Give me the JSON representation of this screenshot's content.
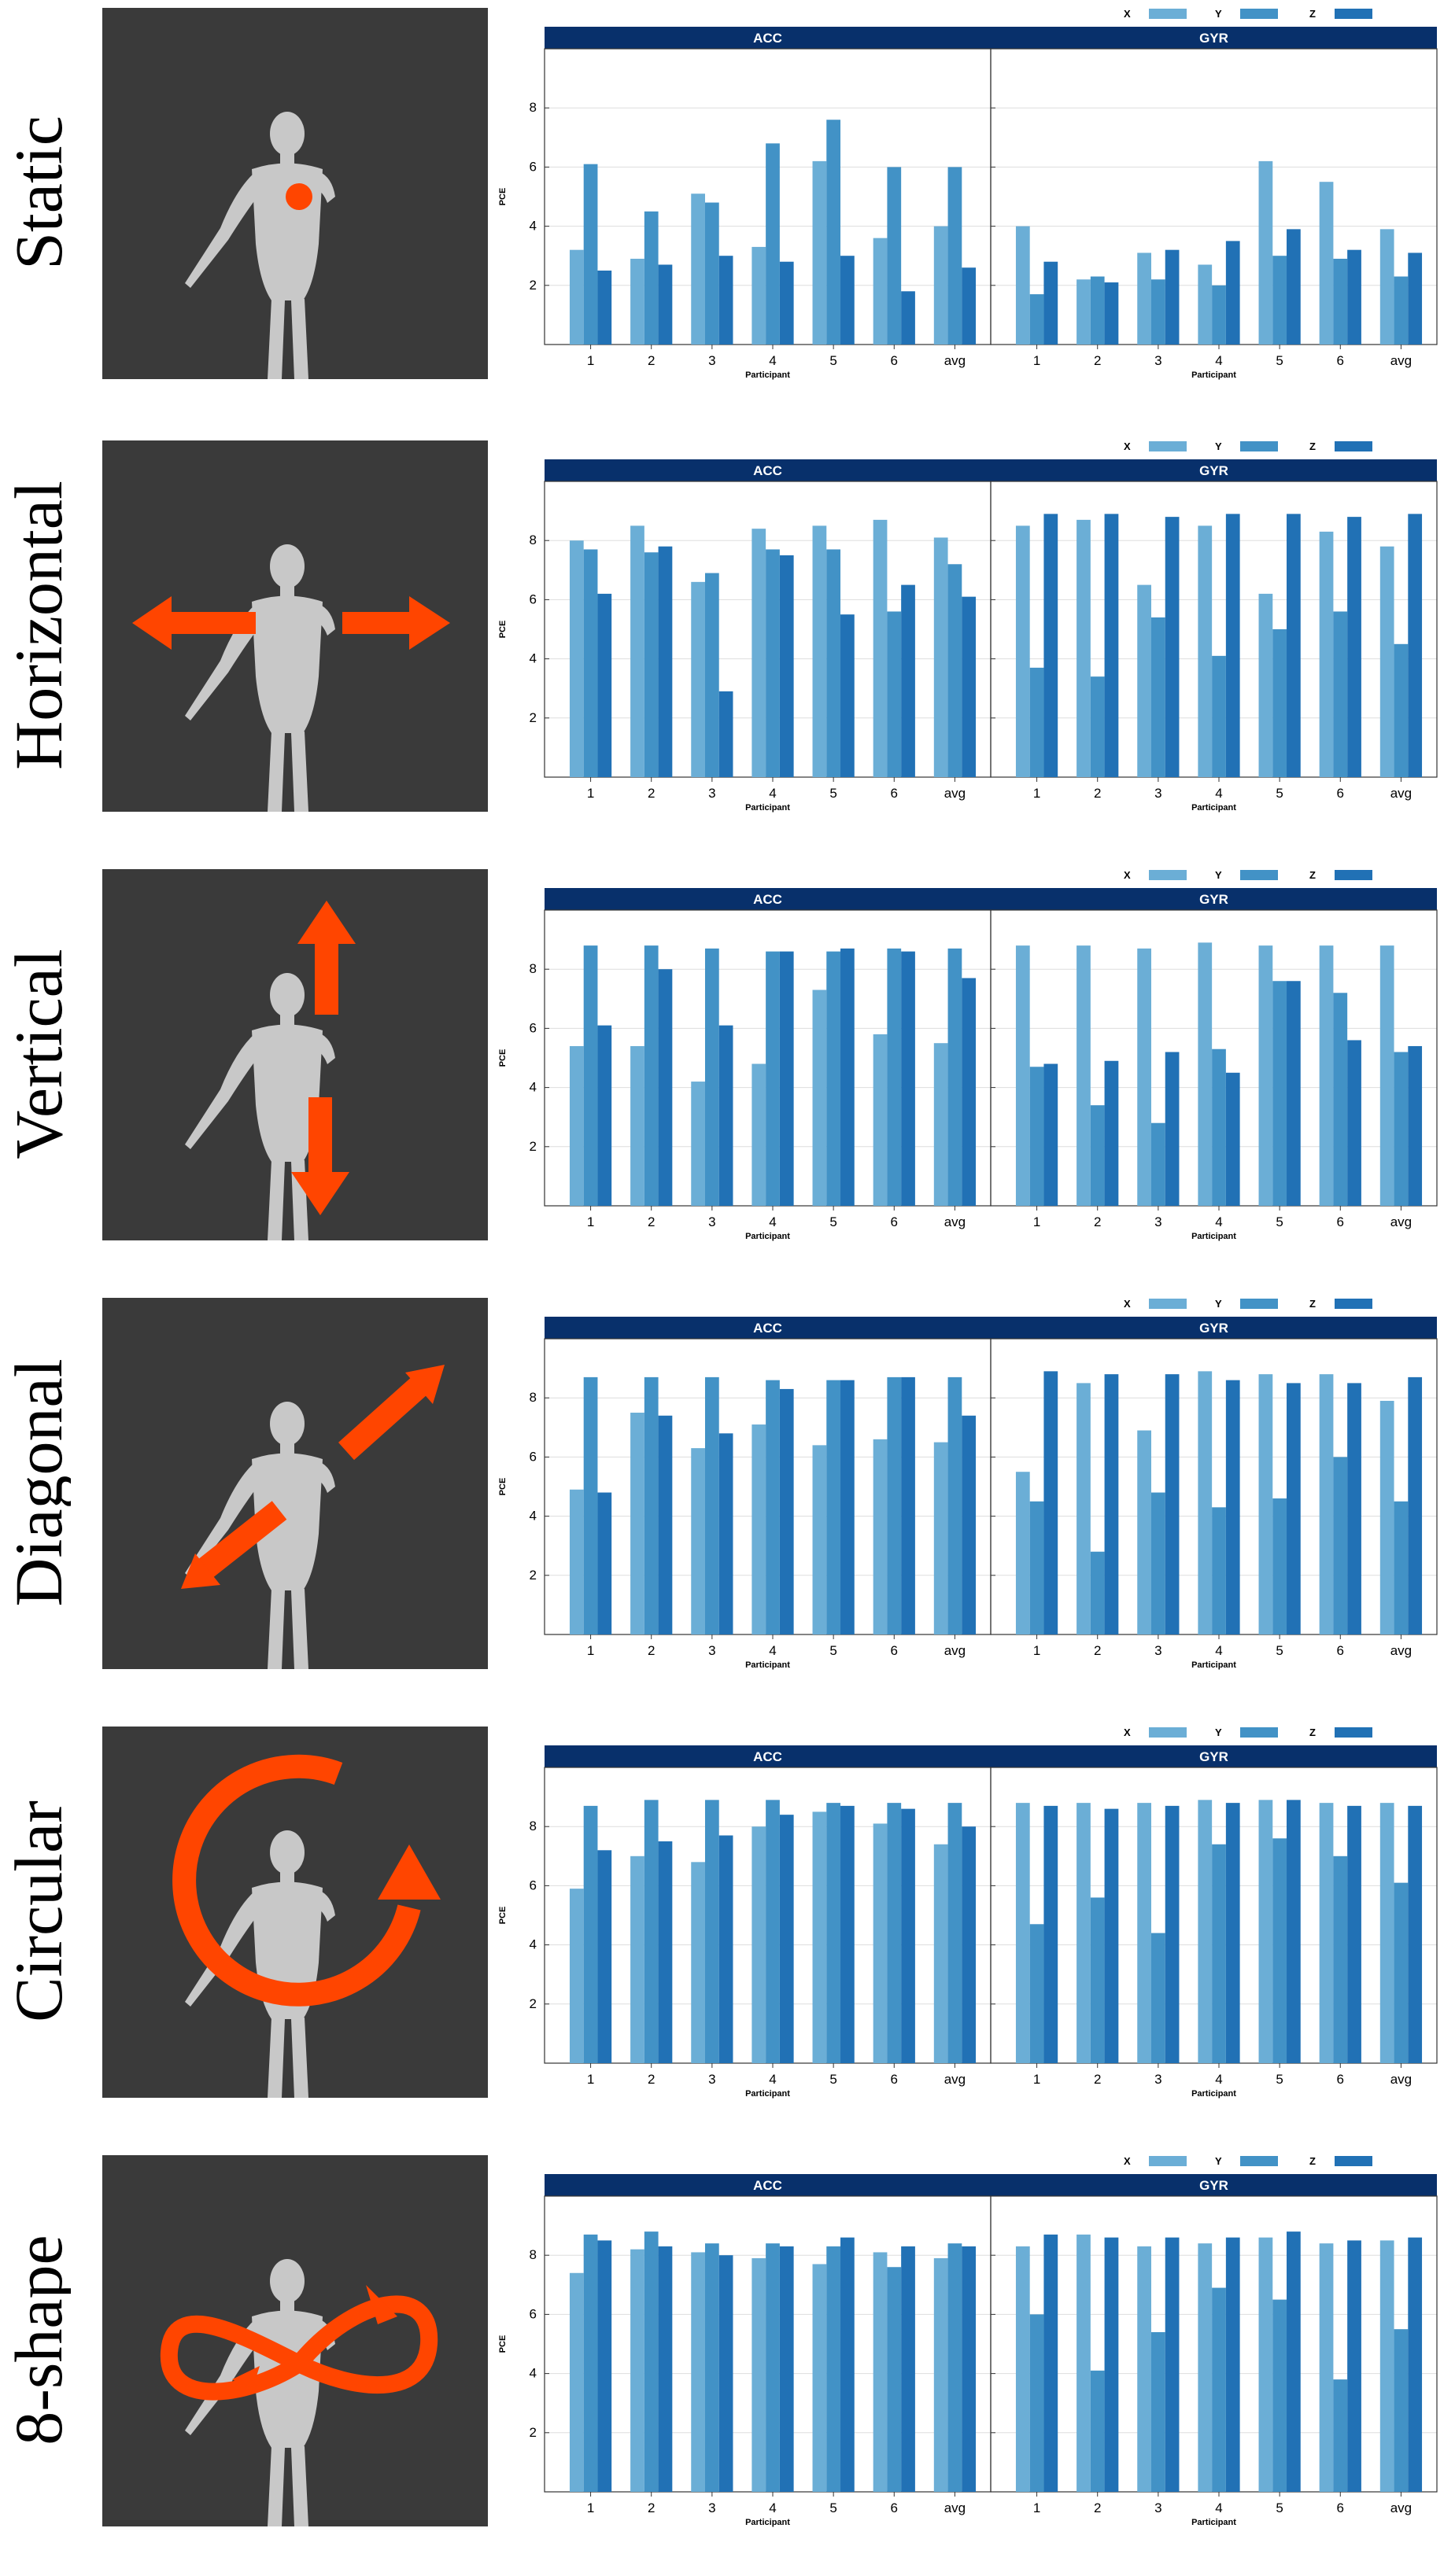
{
  "colors": {
    "x": "#6baed6",
    "y": "#4292c6",
    "z": "#2171b5",
    "header": "#08306b",
    "thumb_bg": "#3a3a3a",
    "arrow": "#ff4500",
    "figure": "#c8c8c8"
  },
  "legend": [
    "X",
    "Y",
    "Z"
  ],
  "panels": [
    "ACC",
    "GYR"
  ],
  "xlabel": "Participant",
  "ylabel": "PCE",
  "yticks": [
    "2",
    "4",
    "6",
    "8"
  ],
  "categories": [
    "1",
    "2",
    "3",
    "4",
    "5",
    "6",
    "avg"
  ],
  "rows": [
    {
      "label": "Static",
      "icon": "dot-marker-icon"
    },
    {
      "label": "Horizontal",
      "icon": "horizontal-arrows-icon"
    },
    {
      "label": "Vertical",
      "icon": "vertical-arrows-icon"
    },
    {
      "label": "Diagonal",
      "icon": "diagonal-arrows-icon"
    },
    {
      "label": "Circular",
      "icon": "circular-arrow-icon"
    },
    {
      "label": "8-shape",
      "icon": "figure-eight-arrow-icon"
    }
  ],
  "chart_data": [
    {
      "type": "bar",
      "title": "Static",
      "xlabel": "Participant",
      "ylabel": "PCE",
      "ylim": [
        0,
        10
      ],
      "categories": [
        "1",
        "2",
        "3",
        "4",
        "5",
        "6",
        "avg"
      ],
      "panels": [
        {
          "name": "ACC",
          "series": [
            {
              "name": "X",
              "values": [
                3.2,
                2.9,
                5.1,
                3.3,
                6.2,
                3.6,
                4.0
              ]
            },
            {
              "name": "Y",
              "values": [
                6.1,
                4.5,
                4.8,
                6.8,
                7.6,
                6.0,
                6.0
              ]
            },
            {
              "name": "Z",
              "values": [
                2.5,
                2.7,
                3.0,
                2.8,
                3.0,
                1.8,
                2.6
              ]
            }
          ]
        },
        {
          "name": "GYR",
          "series": [
            {
              "name": "X",
              "values": [
                4.0,
                2.2,
                3.1,
                2.7,
                6.2,
                5.5,
                3.9
              ]
            },
            {
              "name": "Y",
              "values": [
                1.7,
                2.3,
                2.2,
                2.0,
                3.0,
                2.9,
                2.3
              ]
            },
            {
              "name": "Z",
              "values": [
                2.8,
                2.1,
                3.2,
                3.5,
                3.9,
                3.2,
                3.1
              ]
            }
          ]
        }
      ]
    },
    {
      "type": "bar",
      "title": "Horizontal",
      "xlabel": "Participant",
      "ylabel": "PCE",
      "ylim": [
        0,
        10
      ],
      "categories": [
        "1",
        "2",
        "3",
        "4",
        "5",
        "6",
        "avg"
      ],
      "panels": [
        {
          "name": "ACC",
          "series": [
            {
              "name": "X",
              "values": [
                8.0,
                8.5,
                6.6,
                8.4,
                8.5,
                8.7,
                8.1
              ]
            },
            {
              "name": "Y",
              "values": [
                7.7,
                7.6,
                6.9,
                7.7,
                7.7,
                5.6,
                7.2
              ]
            },
            {
              "name": "Z",
              "values": [
                6.2,
                7.8,
                2.9,
                7.5,
                5.5,
                6.5,
                6.1
              ]
            }
          ]
        },
        {
          "name": "GYR",
          "series": [
            {
              "name": "X",
              "values": [
                8.5,
                8.7,
                6.5,
                8.5,
                6.2,
                8.3,
                7.8
              ]
            },
            {
              "name": "Y",
              "values": [
                3.7,
                3.4,
                5.4,
                4.1,
                5.0,
                5.6,
                4.5
              ]
            },
            {
              "name": "Z",
              "values": [
                8.9,
                8.9,
                8.8,
                8.9,
                8.9,
                8.8,
                8.9
              ]
            }
          ]
        }
      ]
    },
    {
      "type": "bar",
      "title": "Vertical",
      "xlabel": "Participant",
      "ylabel": "PCE",
      "ylim": [
        0,
        10
      ],
      "categories": [
        "1",
        "2",
        "3",
        "4",
        "5",
        "6",
        "avg"
      ],
      "panels": [
        {
          "name": "ACC",
          "series": [
            {
              "name": "X",
              "values": [
                5.4,
                5.4,
                4.2,
                4.8,
                7.3,
                5.8,
                5.5
              ]
            },
            {
              "name": "Y",
              "values": [
                8.8,
                8.8,
                8.7,
                8.6,
                8.6,
                8.7,
                8.7
              ]
            },
            {
              "name": "Z",
              "values": [
                6.1,
                8.0,
                6.1,
                8.6,
                8.7,
                8.6,
                7.7
              ]
            }
          ]
        },
        {
          "name": "GYR",
          "series": [
            {
              "name": "X",
              "values": [
                8.8,
                8.8,
                8.7,
                8.9,
                8.8,
                8.8,
                8.8
              ]
            },
            {
              "name": "Y",
              "values": [
                4.7,
                3.4,
                2.8,
                5.3,
                7.6,
                7.2,
                5.2
              ]
            },
            {
              "name": "Z",
              "values": [
                4.8,
                4.9,
                5.2,
                4.5,
                7.6,
                5.6,
                5.4
              ]
            }
          ]
        }
      ]
    },
    {
      "type": "bar",
      "title": "Diagonal",
      "xlabel": "Participant",
      "ylabel": "PCE",
      "ylim": [
        0,
        10
      ],
      "categories": [
        "1",
        "2",
        "3",
        "4",
        "5",
        "6",
        "avg"
      ],
      "panels": [
        {
          "name": "ACC",
          "series": [
            {
              "name": "X",
              "values": [
                4.9,
                7.5,
                6.3,
                7.1,
                6.4,
                6.6,
                6.5
              ]
            },
            {
              "name": "Y",
              "values": [
                8.7,
                8.7,
                8.7,
                8.6,
                8.6,
                8.7,
                8.7
              ]
            },
            {
              "name": "Z",
              "values": [
                4.8,
                7.4,
                6.8,
                8.3,
                8.6,
                8.7,
                7.4
              ]
            }
          ]
        },
        {
          "name": "GYR",
          "series": [
            {
              "name": "X",
              "values": [
                5.5,
                8.5,
                6.9,
                8.9,
                8.8,
                8.8,
                7.9
              ]
            },
            {
              "name": "Y",
              "values": [
                4.5,
                2.8,
                4.8,
                4.3,
                4.6,
                6.0,
                4.5
              ]
            },
            {
              "name": "Z",
              "values": [
                8.9,
                8.8,
                8.8,
                8.6,
                8.5,
                8.5,
                8.7
              ]
            }
          ]
        }
      ]
    },
    {
      "type": "bar",
      "title": "Circular",
      "xlabel": "Participant",
      "ylabel": "PCE",
      "ylim": [
        0,
        10
      ],
      "categories": [
        "1",
        "2",
        "3",
        "4",
        "5",
        "6",
        "avg"
      ],
      "panels": [
        {
          "name": "ACC",
          "series": [
            {
              "name": "X",
              "values": [
                5.9,
                7.0,
                6.8,
                8.0,
                8.5,
                8.1,
                7.4
              ]
            },
            {
              "name": "Y",
              "values": [
                8.7,
                8.9,
                8.9,
                8.9,
                8.8,
                8.8,
                8.8
              ]
            },
            {
              "name": "Z",
              "values": [
                7.2,
                7.5,
                7.7,
                8.4,
                8.7,
                8.6,
                8.0
              ]
            }
          ]
        },
        {
          "name": "GYR",
          "series": [
            {
              "name": "X",
              "values": [
                8.8,
                8.8,
                8.8,
                8.9,
                8.9,
                8.8,
                8.8
              ]
            },
            {
              "name": "Y",
              "values": [
                4.7,
                5.6,
                4.4,
                7.4,
                7.6,
                7.0,
                6.1
              ]
            },
            {
              "name": "Z",
              "values": [
                8.7,
                8.6,
                8.7,
                8.8,
                8.9,
                8.7,
                8.7
              ]
            }
          ]
        }
      ]
    },
    {
      "type": "bar",
      "title": "8-shape",
      "xlabel": "Participant",
      "ylabel": "PCE",
      "ylim": [
        0,
        10
      ],
      "categories": [
        "1",
        "2",
        "3",
        "4",
        "5",
        "6",
        "avg"
      ],
      "panels": [
        {
          "name": "ACC",
          "series": [
            {
              "name": "X",
              "values": [
                7.4,
                8.2,
                8.1,
                7.9,
                7.7,
                8.1,
                7.9
              ]
            },
            {
              "name": "Y",
              "values": [
                8.7,
                8.8,
                8.4,
                8.4,
                8.3,
                7.6,
                8.4
              ]
            },
            {
              "name": "Z",
              "values": [
                8.5,
                8.3,
                8.0,
                8.3,
                8.6,
                8.3,
                8.3
              ]
            }
          ]
        },
        {
          "name": "GYR",
          "series": [
            {
              "name": "X",
              "values": [
                8.3,
                8.7,
                8.3,
                8.4,
                8.6,
                8.4,
                8.5
              ]
            },
            {
              "name": "Y",
              "values": [
                6.0,
                4.1,
                5.4,
                6.9,
                6.5,
                3.8,
                5.5
              ]
            },
            {
              "name": "Z",
              "values": [
                8.7,
                8.6,
                8.6,
                8.6,
                8.8,
                8.5,
                8.6
              ]
            }
          ]
        }
      ]
    }
  ]
}
